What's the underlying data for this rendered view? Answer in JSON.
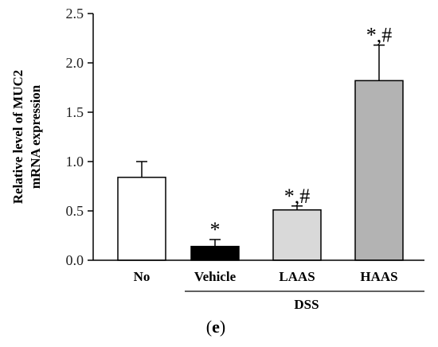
{
  "chart_data": {
    "type": "bar",
    "categories": [
      "No",
      "Vehicle",
      "LAAS",
      "HAAS"
    ],
    "values": [
      0.84,
      0.14,
      0.51,
      1.82
    ],
    "errors": [
      0.16,
      0.07,
      0.04,
      0.36
    ],
    "bar_colors": [
      "#ffffff",
      "#000000",
      "#d9d9d9",
      "#b3b3b3"
    ],
    "annotations": [
      "",
      "*",
      "*,#",
      "*,#"
    ],
    "ylabel_line1": "Relative level of MUC2",
    "ylabel_line2": "mRNA expression",
    "yticks": [
      "0.0",
      "0.5",
      "1.0",
      "1.5",
      "2.0",
      "2.5"
    ],
    "ylim": [
      0,
      2.5
    ],
    "group_label": "DSS",
    "panel_open": "(",
    "panel_letter": "e",
    "panel_close": ")"
  }
}
